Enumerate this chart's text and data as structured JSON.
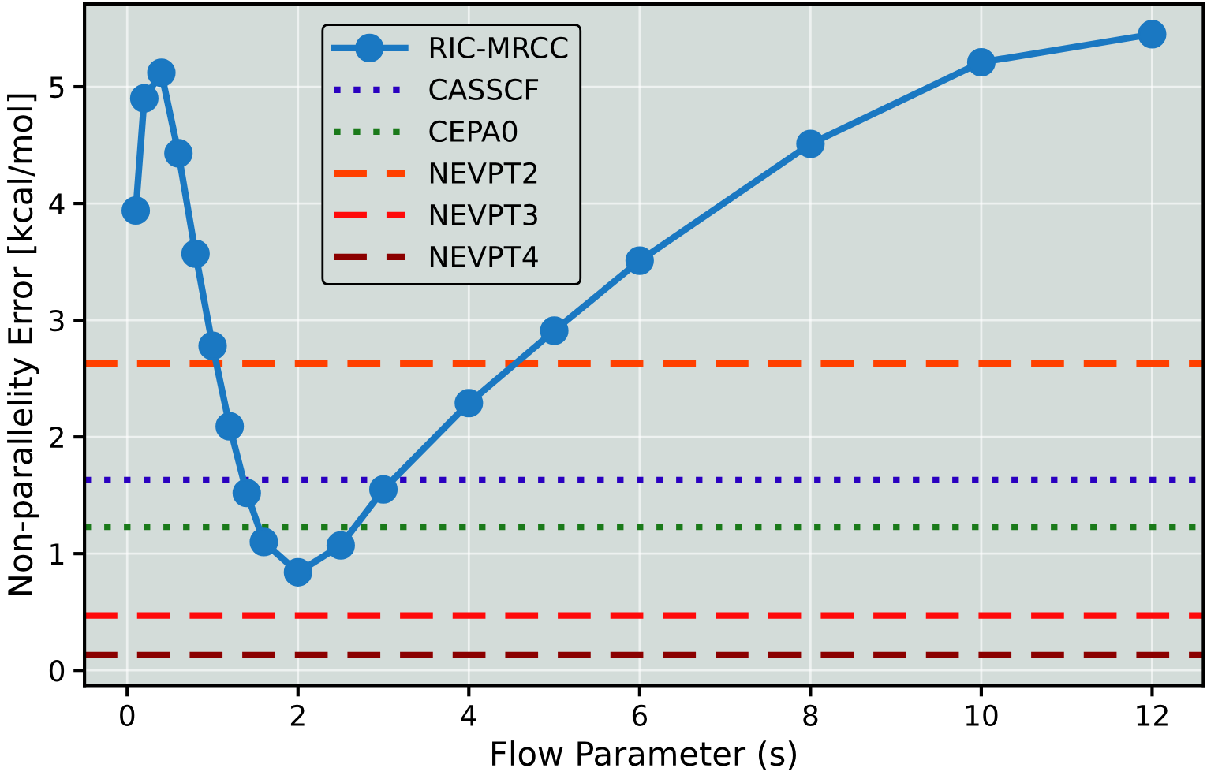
{
  "chart_data": {
    "type": "line",
    "xlabel": "Flow Parameter (s)",
    "ylabel": "Non-parallelity Error [kcal/mol]",
    "x": [
      0.1,
      0.2,
      0.4,
      0.6,
      0.8,
      1.0,
      1.2,
      1.4,
      1.6,
      2.0,
      2.5,
      3.0,
      4.0,
      5.0,
      6.0,
      8.0,
      10.0,
      12.0
    ],
    "series": [
      {
        "name": "RIC-MRCC",
        "color": "#1a78c2",
        "values": [
          3.94,
          4.9,
          5.12,
          4.43,
          3.57,
          2.78,
          2.09,
          1.52,
          1.1,
          0.84,
          1.07,
          1.55,
          2.29,
          2.91,
          3.51,
          4.51,
          5.21,
          5.45
        ]
      }
    ],
    "ref_lines": [
      {
        "axis": "y",
        "value": 1.63,
        "label": "CASSCF",
        "color": "#2a00c0",
        "line_style": "dotted"
      },
      {
        "axis": "y",
        "value": 1.23,
        "label": "CEPA0",
        "color": "#1a7a1a",
        "line_style": "dotted"
      },
      {
        "axis": "y",
        "value": 2.63,
        "label": "NEVPT2",
        "color": "#ff4000",
        "line_style": "dashed"
      },
      {
        "axis": "y",
        "value": 0.47,
        "label": "NEVPT3",
        "color": "#ff0a0a",
        "line_style": "dashed"
      },
      {
        "axis": "y",
        "value": 0.13,
        "label": "NEVPT4",
        "color": "#8b0000",
        "line_style": "dashed"
      }
    ],
    "xlim": [
      -0.5,
      12.6
    ],
    "xticks": [
      0,
      2,
      4,
      6,
      8,
      10,
      12
    ],
    "ylim": [
      -0.13,
      5.71
    ],
    "yticks": [
      0,
      1,
      2,
      3,
      4,
      5
    ],
    "grid": true,
    "legend": "top left",
    "marker": "circle",
    "line_style": "solid"
  }
}
